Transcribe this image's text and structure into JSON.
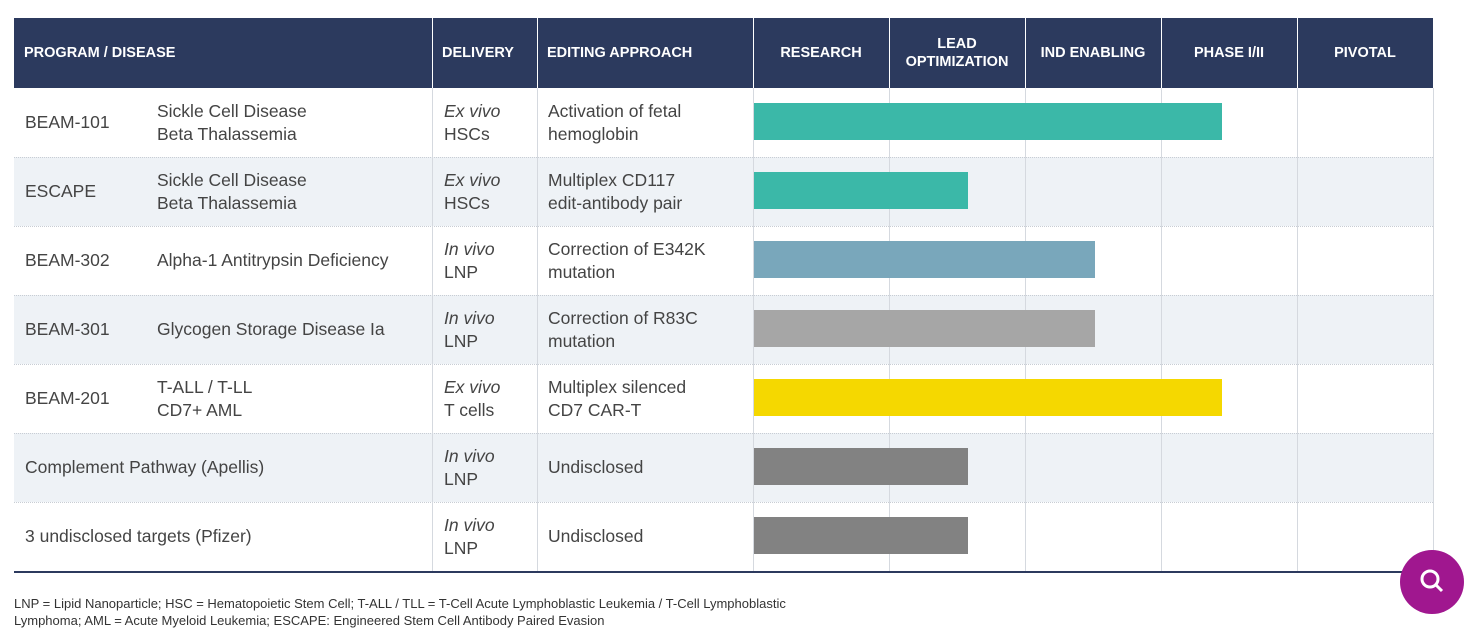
{
  "header": {
    "columns": [
      "PROGRAM / DISEASE",
      "DELIVERY",
      "EDITING APPROACH"
    ],
    "stages": [
      "RESEARCH",
      "LEAD OPTIMIZATION",
      "IND ENABLING",
      "PHASE I/II",
      "PIVOTAL"
    ]
  },
  "rows": [
    {
      "program": "BEAM-101",
      "disease": [
        "Sickle Cell Disease",
        "Beta Thalassemia"
      ],
      "delivery": [
        "Ex vivo",
        "HSCs"
      ],
      "approach": [
        "Activation of fetal",
        "hemoglobin"
      ],
      "progress": 3.44,
      "color": "#3bb8a8"
    },
    {
      "program": "ESCAPE",
      "disease": [
        "Sickle Cell Disease",
        "Beta Thalassemia"
      ],
      "delivery": [
        "Ex vivo",
        "HSCs"
      ],
      "approach": [
        "Multiplex CD117",
        "edit-antibody pair"
      ],
      "progress": 1.57,
      "color": "#3bb8a8"
    },
    {
      "program": "BEAM-302",
      "disease": [
        "Alpha-1 Antitrypsin Deficiency"
      ],
      "delivery": [
        "In vivo",
        "LNP"
      ],
      "approach": [
        "Correction of E342K",
        "mutation"
      ],
      "progress": 2.51,
      "color": "#79a7bb"
    },
    {
      "program": "BEAM-301",
      "disease": [
        "Glycogen Storage Disease Ia"
      ],
      "delivery": [
        "In vivo",
        "LNP"
      ],
      "approach": [
        "Correction of R83C",
        "mutation"
      ],
      "progress": 2.51,
      "color": "#a6a6a6"
    },
    {
      "program": "BEAM-201",
      "disease": [
        "T-ALL / T-LL",
        "CD7+ AML"
      ],
      "delivery": [
        "Ex vivo",
        "T cells"
      ],
      "approach": [
        "Multiplex silenced",
        "CD7 CAR-T"
      ],
      "progress": 3.44,
      "color": "#f5d800"
    },
    {
      "program": "Complement Pathway (Apellis)",
      "delivery": [
        "In vivo",
        "LNP"
      ],
      "approach": [
        "Undisclosed"
      ],
      "progress": 1.57,
      "color": "#828282"
    },
    {
      "program": "3 undisclosed targets (Pfizer)",
      "delivery": [
        "In vivo",
        "LNP"
      ],
      "approach": [
        "Undisclosed"
      ],
      "progress": 1.57,
      "color": "#828282"
    }
  ],
  "footnote": [
    "LNP = Lipid Nanoparticle; HSC = Hematopoietic Stem Cell; T-ALL / TLL = T-Cell Acute Lymphoblastic Leukemia / T-Cell Lymphoblastic",
    "Lymphoma; AML = Acute Myeloid Leukemia; ESCAPE: Engineered Stem Cell Antibody Paired Evasion"
  ]
}
